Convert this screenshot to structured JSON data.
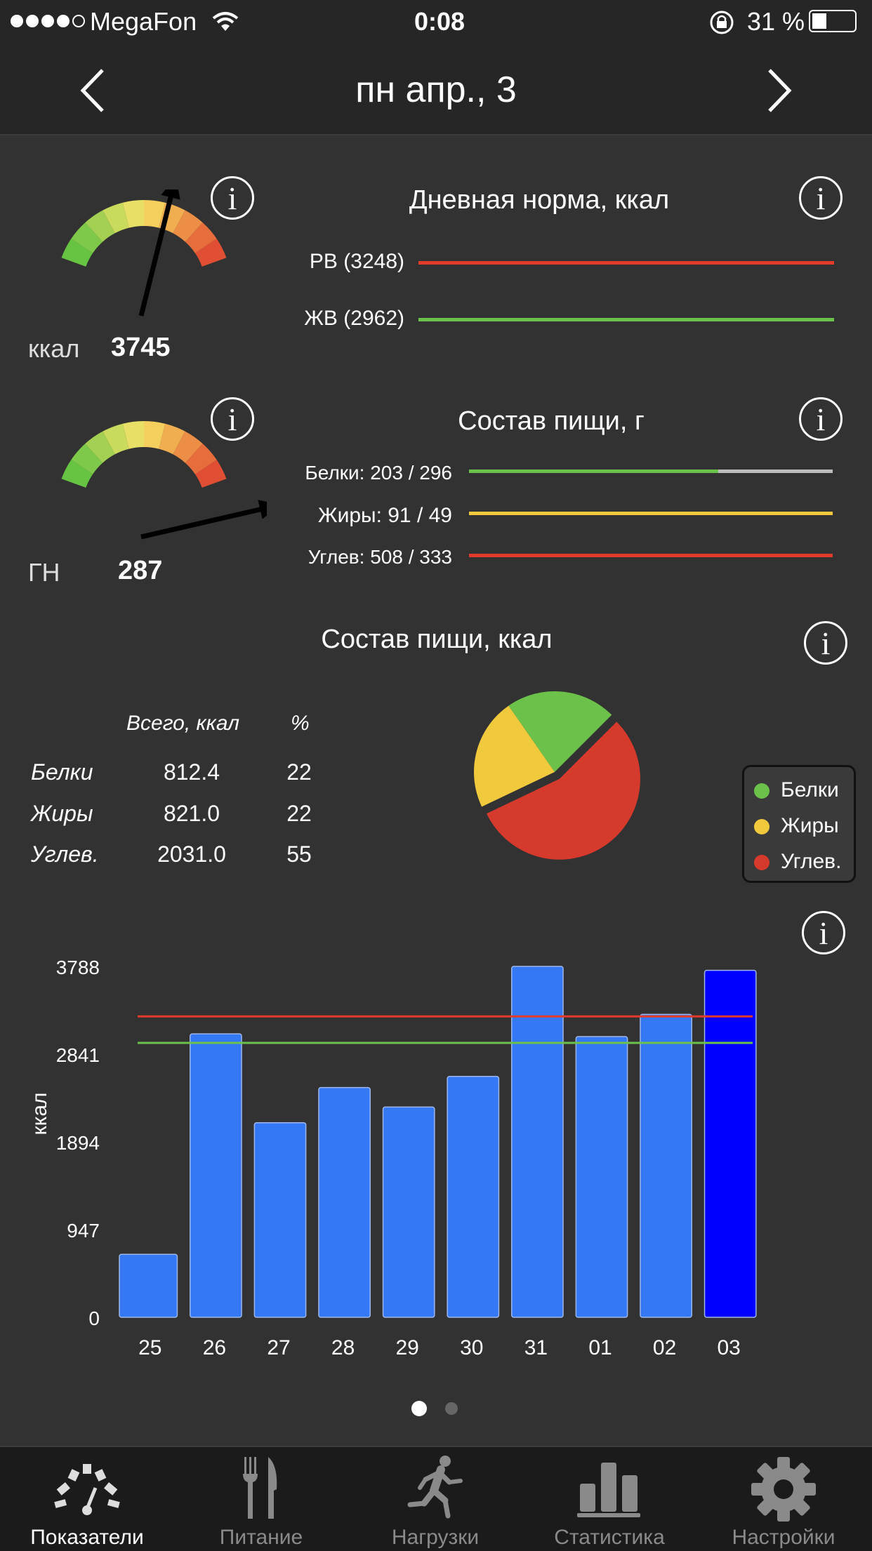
{
  "status_bar": {
    "carrier": "MegaFon",
    "time": "0:08",
    "battery": "31 %"
  },
  "nav": {
    "title": "пн  апр., 3"
  },
  "calorie_gauge": {
    "unit": "ккал",
    "value": "3745",
    "needle_level": 0.6
  },
  "gn_gauge": {
    "unit": "ГН",
    "value": "287",
    "needle_level": 1.05
  },
  "daily_norm": {
    "title": "Дневная норма, ккал",
    "rows": [
      {
        "label": "РВ (3248)",
        "color": "#e23b2b"
      },
      {
        "label": "ЖВ (2962)",
        "color": "#6cc14a"
      }
    ]
  },
  "food_grams": {
    "title": "Состав пищи, г",
    "rows": [
      {
        "label": "Белки: 203 / 296",
        "fill": 0.686,
        "color": "#6cc14a"
      },
      {
        "label": "Жиры: 91 / 49",
        "fill": 1.0,
        "color": "#f0c93d"
      },
      {
        "label": "Углев: 508 / 333",
        "fill": 1.0,
        "color": "#e23b2b"
      }
    ]
  },
  "food_kcal": {
    "title": "Состав пищи, ккал",
    "col_total": "Всего, ккал",
    "col_pct": "%",
    "rows": [
      {
        "name": "Белки",
        "total": "812.4",
        "pct": "22"
      },
      {
        "name": "Жиры",
        "total": "821.0",
        "pct": "22"
      },
      {
        "name": "Углев.",
        "total": "2031.0",
        "pct": "55"
      }
    ],
    "legend": [
      {
        "label": "Белки",
        "color": "#6cc14a"
      },
      {
        "label": "Жиры",
        "color": "#f0c93d"
      },
      {
        "label": "Углев.",
        "color": "#d63a2c"
      }
    ]
  },
  "chart_data": {
    "type": "bar",
    "ylabel": "ккал",
    "ylim": [
      0,
      3788
    ],
    "yticks": [
      "0",
      "947",
      "1894",
      "2841",
      "3788"
    ],
    "categories": [
      "25",
      "26",
      "27",
      "28",
      "29",
      "30",
      "31",
      "01",
      "02",
      "03"
    ],
    "values": [
      680,
      3060,
      2100,
      2480,
      2270,
      2600,
      3788,
      3030,
      3270,
      3745
    ],
    "highlight_color": "#0000ff",
    "bar_color": "#3478f6",
    "reference_lines": [
      {
        "value": 3248,
        "color": "#e23b2b"
      },
      {
        "value": 2962,
        "color": "#6cc14a"
      }
    ]
  },
  "pages": {
    "count": 2,
    "active": 0
  },
  "tabs": [
    {
      "label": "Показатели",
      "icon": "speedometer-icon",
      "active": true
    },
    {
      "label": "Питание",
      "icon": "fork-knife-icon",
      "active": false
    },
    {
      "label": "Нагрузки",
      "icon": "runner-icon",
      "active": false
    },
    {
      "label": "Статистика",
      "icon": "bar-chart-icon",
      "active": false
    },
    {
      "label": "Настройки",
      "icon": "gear-icon",
      "active": false
    }
  ]
}
